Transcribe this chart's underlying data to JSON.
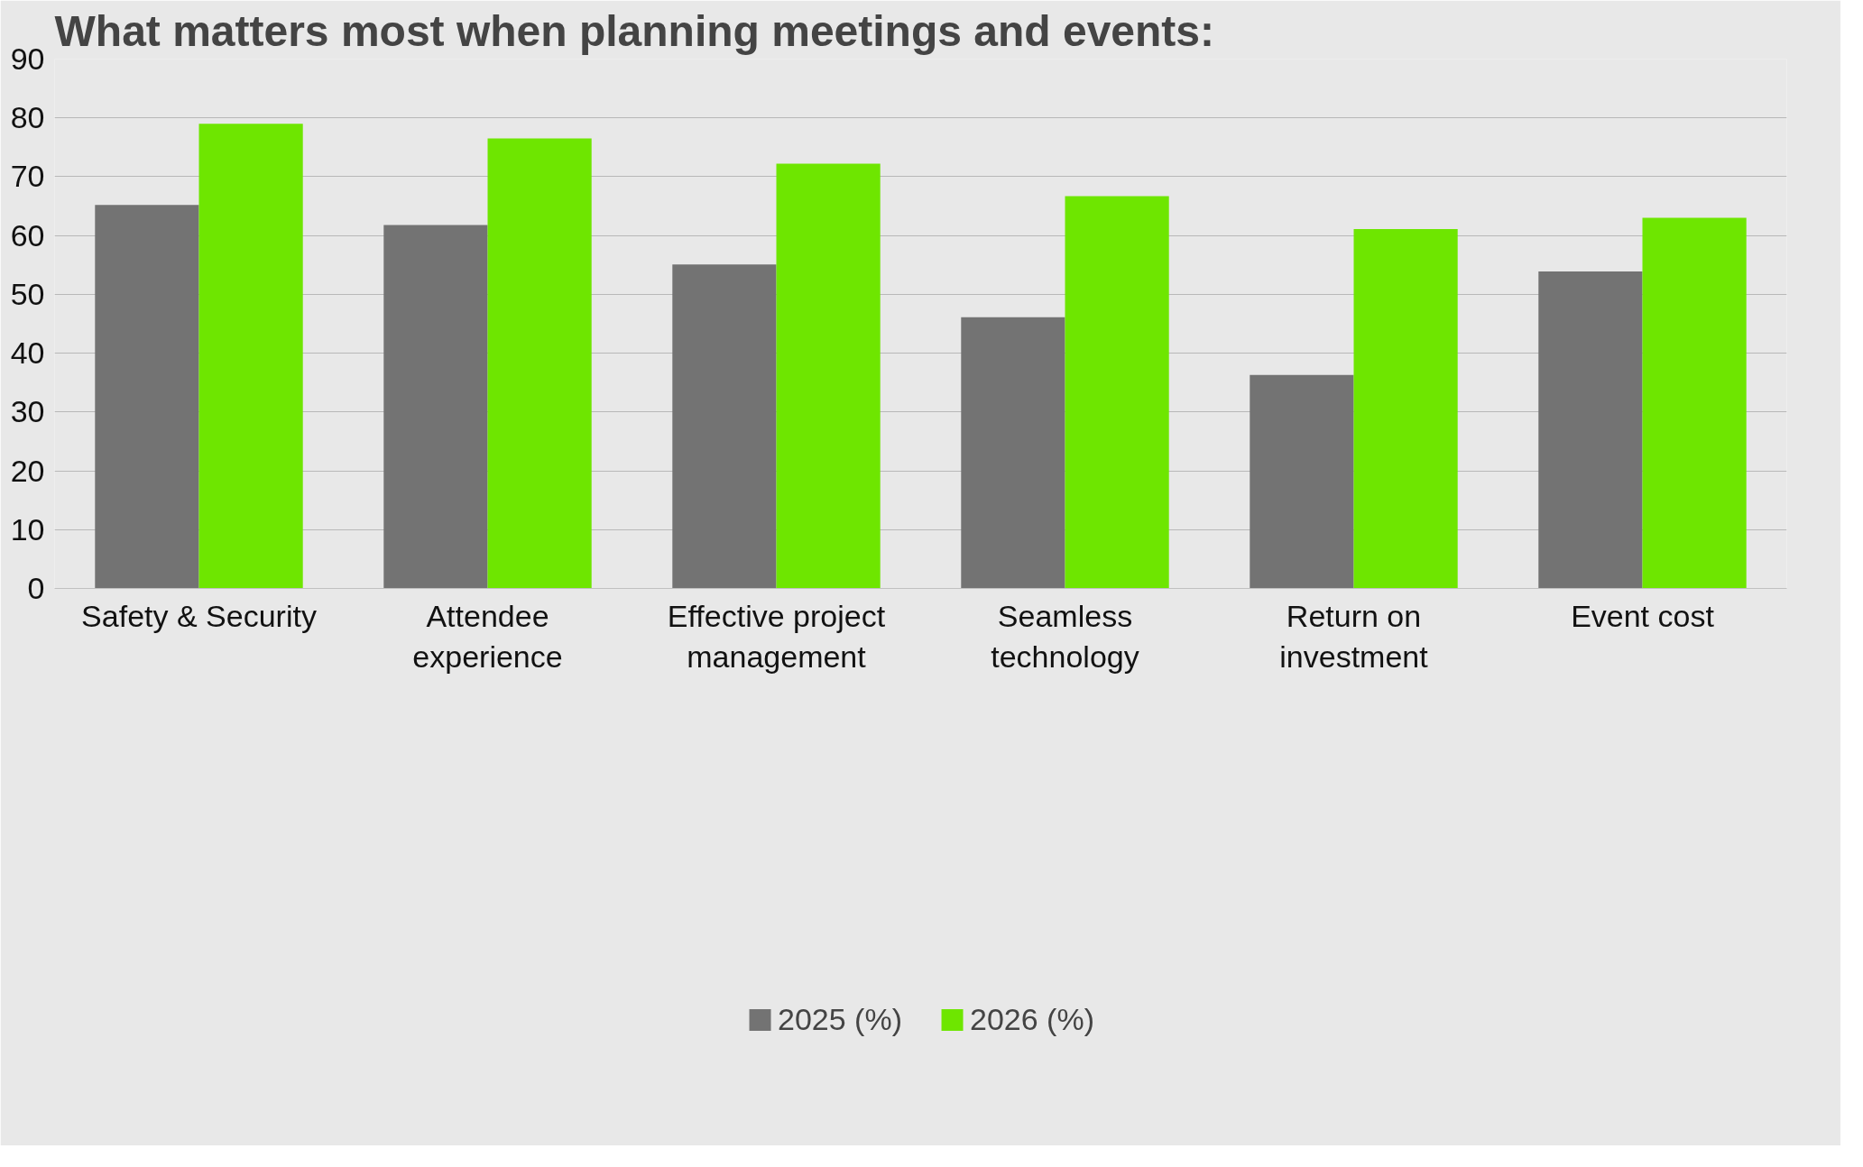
{
  "chart_data": {
    "type": "bar",
    "title": "What matters most when planning meetings and events:",
    "categories": [
      "Safety & Security",
      "Attendee experience",
      "Effective project management",
      "Seamless technology",
      "Return on investment",
      "Event cost"
    ],
    "series": [
      {
        "name": "2025 (%)",
        "color": "#737373",
        "values": [
          65.2,
          61.8,
          55.1,
          46.1,
          36.3,
          53.9
        ]
      },
      {
        "name": "2026 (%)",
        "color": "#6ee600",
        "values": [
          79.0,
          76.5,
          72.2,
          66.7,
          61.1,
          63.0
        ]
      }
    ],
    "ylim": [
      0,
      90
    ],
    "yticks": [
      0,
      10,
      20,
      30,
      40,
      50,
      60,
      70,
      80,
      90
    ],
    "grid": "y",
    "legend": "bottom"
  }
}
